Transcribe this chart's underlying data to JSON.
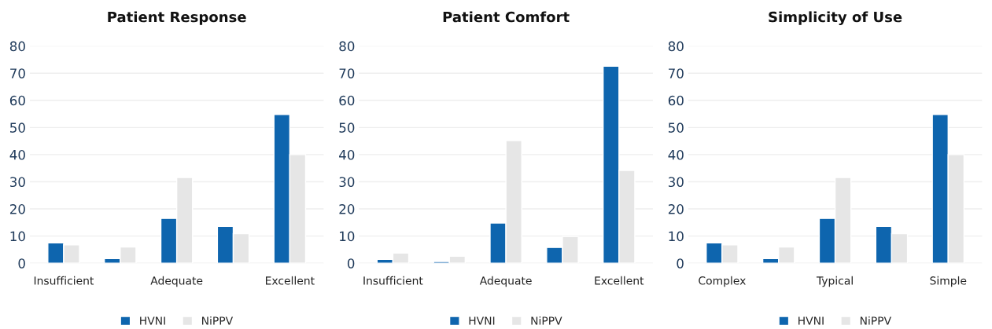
{
  "chart_data": [
    {
      "type": "bar",
      "title": "Patient Response",
      "categories": [
        "Insufficient",
        null,
        "Adequate",
        null,
        "Excellent"
      ],
      "ylim": [
        0,
        80
      ],
      "yticks": [
        0,
        10,
        20,
        30,
        40,
        50,
        60,
        70,
        80
      ],
      "grid": "y",
      "legend": "bottom",
      "series": [
        {
          "name": "HVNI",
          "color": "#0e65ae",
          "values": [
            7.5,
            1.7,
            16.5,
            13.6,
            54.8
          ]
        },
        {
          "name": "NiPPV",
          "color": "#e6e6e6",
          "values": [
            6.8,
            6,
            31.6,
            10.9,
            40
          ]
        }
      ]
    },
    {
      "type": "bar",
      "title": "Patient Comfort",
      "categories": [
        "Insufficient",
        null,
        "Adequate",
        null,
        "Excellent"
      ],
      "ylim": [
        0,
        80
      ],
      "yticks": [
        0,
        10,
        20,
        30,
        40,
        50,
        60,
        70,
        80
      ],
      "grid": "y",
      "legend": "bottom",
      "series": [
        {
          "name": "HVNI",
          "color": "#0e65ae",
          "values": [
            1.4,
            0.6,
            14.8,
            5.8,
            72.6
          ]
        },
        {
          "name": "NiPPV",
          "color": "#e6e6e6",
          "values": [
            3.7,
            2.6,
            45.2,
            9.8,
            34.2
          ]
        }
      ]
    },
    {
      "type": "bar",
      "title": "Simplicity of Use",
      "categories": [
        "Complex",
        null,
        "Typical",
        null,
        "Simple"
      ],
      "ylim": [
        0,
        80
      ],
      "yticks": [
        0,
        10,
        20,
        30,
        40,
        50,
        60,
        70,
        80
      ],
      "grid": "y",
      "legend": "bottom",
      "series": [
        {
          "name": "HVNI",
          "color": "#0e65ae",
          "values": [
            7.5,
            1.7,
            16.5,
            13.6,
            54.8
          ]
        },
        {
          "name": "NiPPV",
          "color": "#e6e6e6",
          "values": [
            6.8,
            6,
            31.6,
            10.9,
            40
          ]
        }
      ]
    }
  ]
}
